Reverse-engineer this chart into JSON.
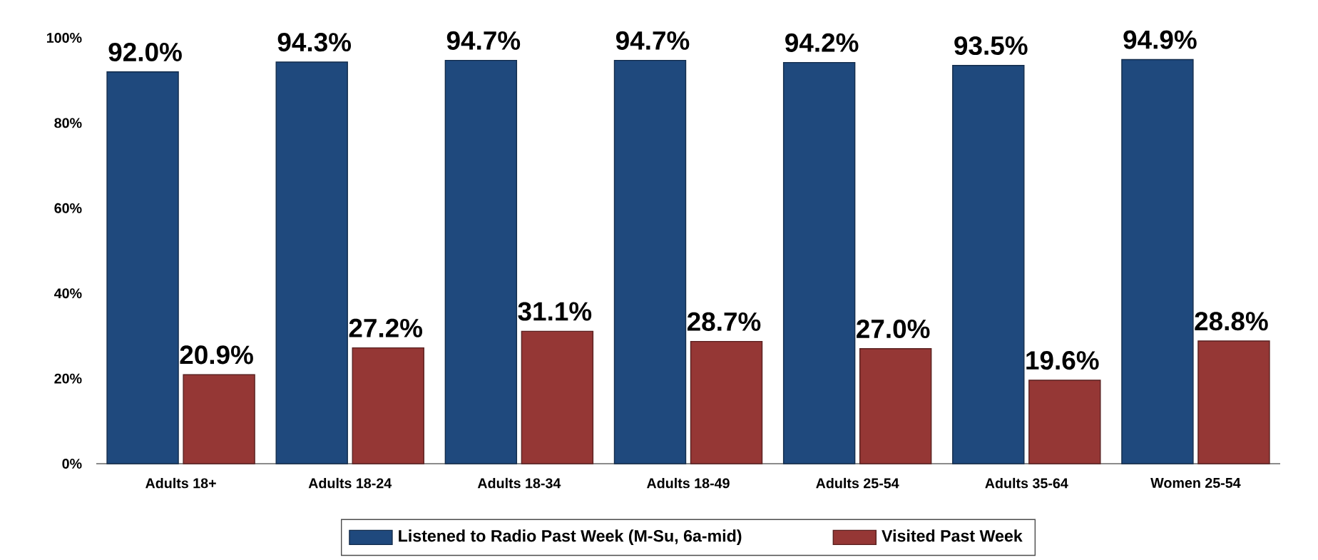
{
  "chart_data": {
    "type": "bar",
    "categories": [
      "Adults 18+",
      "Adults 18-24",
      "Adults 18-34",
      "Adults 18-49",
      "Adults 25-54",
      "Adults 35-64",
      "Women 25-54"
    ],
    "series": [
      {
        "name": "Listened to Radio Past Week (M-Su, 6a-mid)",
        "color": "#1f497d",
        "values": [
          92.0,
          94.3,
          94.7,
          94.7,
          94.2,
          93.5,
          94.9
        ],
        "value_labels": [
          "92.0%",
          "94.3%",
          "94.7%",
          "94.7%",
          "94.2%",
          "93.5%",
          "94.9%"
        ]
      },
      {
        "name": "Visited Past Week",
        "color": "#953735",
        "values": [
          20.9,
          27.2,
          31.1,
          28.7,
          27.0,
          19.6,
          28.8
        ],
        "value_labels": [
          "20.9%",
          "27.2%",
          "31.1%",
          "28.7%",
          "27.0%",
          "19.6%",
          "28.8%"
        ]
      }
    ],
    "ylim": [
      0,
      100
    ],
    "yticks": [
      {
        "value": 0,
        "label": "0%"
      },
      {
        "value": 20,
        "label": "20%"
      },
      {
        "value": 40,
        "label": "40%"
      },
      {
        "value": 60,
        "label": "60%"
      },
      {
        "value": 80,
        "label": "80%"
      },
      {
        "value": 100,
        "label": "100%"
      }
    ],
    "legend": "bottom"
  }
}
